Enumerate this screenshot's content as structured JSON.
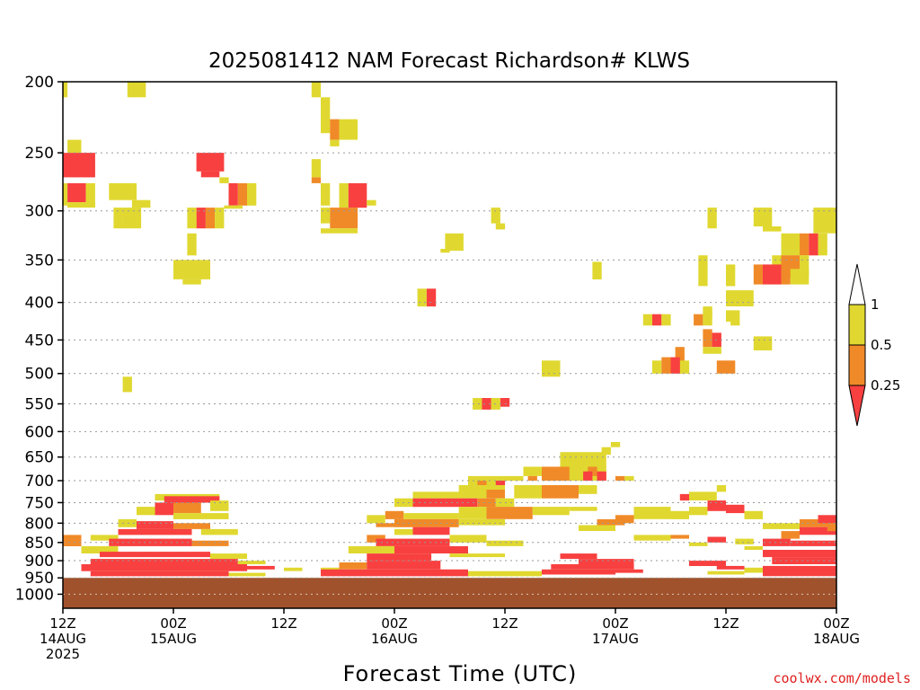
{
  "chart_data": {
    "type": "heatmap",
    "title": "2025081412 NAM Forecast Richardson# KLWS",
    "xlabel": "Forecast Time (UTC)",
    "credit": "coolwx.com/models",
    "y_ticks": [
      200,
      250,
      300,
      350,
      400,
      450,
      500,
      550,
      600,
      650,
      700,
      750,
      800,
      850,
      900,
      950,
      1000
    ],
    "y_range_hpa": [
      200,
      1000
    ],
    "x_range_hours": [
      0,
      84
    ],
    "x_ticks": [
      {
        "hour": 0,
        "line1": "12Z",
        "line2": "14AUG",
        "line3": "2025"
      },
      {
        "hour": 12,
        "line1": "00Z",
        "line2": "15AUG",
        "line3": ""
      },
      {
        "hour": 24,
        "line1": "12Z",
        "line2": "",
        "line3": ""
      },
      {
        "hour": 36,
        "line1": "00Z",
        "line2": "16AUG",
        "line3": ""
      },
      {
        "hour": 48,
        "line1": "12Z",
        "line2": "",
        "line3": ""
      },
      {
        "hour": 60,
        "line1": "00Z",
        "line2": "17AUG",
        "line3": ""
      },
      {
        "hour": 72,
        "line1": "12Z",
        "line2": "",
        "line3": ""
      },
      {
        "hour": 84,
        "line1": "00Z",
        "line2": "18AUG",
        "line3": ""
      }
    ],
    "grid": "dotted horizontal at pressure ticks",
    "legend": {
      "placement": "right",
      "labels": [
        "1",
        "0.5",
        "0.25"
      ],
      "bins": [
        {
          "range": ">1",
          "color": "#ffffff"
        },
        {
          "range": "0.5-1",
          "color": "#e0d830"
        },
        {
          "range": "0.25-0.5",
          "color": "#f08a28"
        },
        {
          "range": "<0.25",
          "color": "#f84040"
        }
      ]
    },
    "colors": {
      "low": "#f84040",
      "mid": "#f08a28",
      "high": "#e0d830",
      "ground": "#a0522d"
    },
    "ground_below_hpa": 950,
    "cells": [
      [
        0,
        0.5,
        200,
        210,
        "Y"
      ],
      [
        7,
        9,
        200,
        210,
        "Y"
      ],
      [
        27,
        28,
        200,
        210,
        "Y"
      ],
      [
        28,
        29,
        210,
        235,
        "Y"
      ],
      [
        29,
        30,
        225,
        240,
        "M"
      ],
      [
        30,
        32,
        225,
        240,
        "Y"
      ],
      [
        29,
        30,
        240,
        245,
        "Y"
      ],
      [
        0.5,
        2,
        240,
        250,
        "Y"
      ],
      [
        0,
        3.5,
        250,
        270,
        "L"
      ],
      [
        14.5,
        17.5,
        250,
        265,
        "L"
      ],
      [
        15,
        17,
        265,
        270,
        "L"
      ],
      [
        27,
        28,
        255,
        270,
        "Y"
      ],
      [
        27,
        28,
        270,
        275,
        "M"
      ],
      [
        17,
        18,
        270,
        275,
        "Y"
      ],
      [
        0,
        0.5,
        275,
        295,
        "Y"
      ],
      [
        0.5,
        2.5,
        275,
        292,
        "L"
      ],
      [
        2.5,
        3.5,
        275,
        295,
        "Y"
      ],
      [
        0.5,
        3.5,
        292,
        297,
        "Y"
      ],
      [
        5,
        8,
        275,
        290,
        "Y"
      ],
      [
        7.5,
        9.5,
        290,
        297,
        "Y"
      ],
      [
        18,
        19,
        275,
        295,
        "L"
      ],
      [
        19,
        20,
        275,
        295,
        "M"
      ],
      [
        17.5,
        19.5,
        295,
        298,
        "Y"
      ],
      [
        20,
        21,
        275,
        295,
        "Y"
      ],
      [
        28,
        29,
        275,
        295,
        "Y"
      ],
      [
        30,
        31,
        275,
        297,
        "Y"
      ],
      [
        31,
        33,
        275,
        297,
        "L"
      ],
      [
        33,
        34,
        290,
        295,
        "Y"
      ],
      [
        5.5,
        6.5,
        297,
        317,
        "Y"
      ],
      [
        6.5,
        8.5,
        297,
        317,
        "Y"
      ],
      [
        14.5,
        15.5,
        297,
        317,
        "L"
      ],
      [
        15.5,
        16.5,
        297,
        317,
        "M"
      ],
      [
        13.5,
        14.5,
        297,
        317,
        "Y"
      ],
      [
        16.5,
        17.5,
        297,
        317,
        "Y"
      ],
      [
        28,
        29,
        297,
        312,
        "Y"
      ],
      [
        29,
        32,
        297,
        317,
        "M"
      ],
      [
        28,
        32,
        317,
        322,
        "Y"
      ],
      [
        46.5,
        47.5,
        297,
        312,
        "Y"
      ],
      [
        47,
        48,
        312,
        318,
        "Y"
      ],
      [
        13.5,
        14.5,
        322,
        345,
        "Y"
      ],
      [
        41.5,
        43.5,
        322,
        340,
        "Y"
      ],
      [
        41,
        42,
        338,
        342,
        "Y"
      ],
      [
        70,
        71,
        297,
        317,
        "Y"
      ],
      [
        75,
        77,
        297,
        315,
        "Y"
      ],
      [
        76,
        78,
        315,
        320,
        "Y"
      ],
      [
        81.5,
        84,
        297,
        322,
        "Y"
      ],
      [
        12,
        16,
        350,
        372,
        "Y"
      ],
      [
        13,
        15,
        372,
        378,
        "Y"
      ],
      [
        57.5,
        58.5,
        352,
        372,
        "Y"
      ],
      [
        78,
        80,
        322,
        345,
        "Y"
      ],
      [
        80,
        81,
        322,
        345,
        "M"
      ],
      [
        81,
        82,
        322,
        345,
        "L"
      ],
      [
        82,
        83,
        322,
        345,
        "Y"
      ],
      [
        77,
        78,
        345,
        370,
        "Y"
      ],
      [
        78,
        80,
        345,
        370,
        "M"
      ],
      [
        80,
        81,
        345,
        370,
        "Y"
      ],
      [
        75,
        76,
        355,
        378,
        "M"
      ],
      [
        76,
        78,
        355,
        378,
        "L"
      ],
      [
        78,
        79,
        355,
        378,
        "M"
      ],
      [
        79,
        81,
        360,
        378,
        "Y"
      ],
      [
        69,
        70,
        345,
        380,
        "Y"
      ],
      [
        72,
        73,
        355,
        380,
        "Y"
      ],
      [
        38.5,
        39.5,
        383,
        405,
        "Y"
      ],
      [
        39.5,
        40.5,
        383,
        405,
        "L"
      ],
      [
        72,
        75,
        385,
        405,
        "Y"
      ],
      [
        69.5,
        70.5,
        405,
        420,
        "Y"
      ],
      [
        72,
        73,
        410,
        425,
        "Y"
      ],
      [
        63,
        64,
        415,
        430,
        "Y"
      ],
      [
        64,
        65,
        415,
        430,
        "L"
      ],
      [
        65,
        66,
        415,
        430,
        "Y"
      ],
      [
        68.5,
        69.5,
        415,
        430,
        "M"
      ],
      [
        69.5,
        70.5,
        410,
        430,
        "Y"
      ],
      [
        72.5,
        73.5,
        410,
        430,
        "Y"
      ],
      [
        69.5,
        70.5,
        435,
        460,
        "M"
      ],
      [
        70.5,
        71.5,
        440,
        460,
        "L"
      ],
      [
        75,
        77,
        445,
        465,
        "Y"
      ],
      [
        69.5,
        71.5,
        460,
        470,
        "Y"
      ],
      [
        66.5,
        67.5,
        460,
        500,
        "M"
      ],
      [
        64,
        65,
        480,
        500,
        "Y"
      ],
      [
        67,
        68,
        480,
        500,
        "Y"
      ],
      [
        65,
        66,
        475,
        500,
        "M"
      ],
      [
        66,
        67,
        475,
        500,
        "L"
      ],
      [
        71,
        73,
        480,
        500,
        "M"
      ],
      [
        6.5,
        7.5,
        505,
        530,
        "Y"
      ],
      [
        52,
        54,
        480,
        505,
        "Y"
      ],
      [
        44.5,
        45.5,
        540,
        560,
        "Y"
      ],
      [
        45.5,
        46.5,
        540,
        560,
        "L"
      ],
      [
        46.5,
        47.5,
        540,
        560,
        "Y"
      ],
      [
        47.5,
        48.5,
        540,
        555,
        "L"
      ],
      [
        59.5,
        60.5,
        620,
        630,
        "Y"
      ],
      [
        58.5,
        59.5,
        630,
        645,
        "Y"
      ],
      [
        54,
        59,
        640,
        700,
        "Y"
      ],
      [
        57,
        58,
        670,
        690,
        "M"
      ],
      [
        56.5,
        57.5,
        680,
        700,
        "L"
      ],
      [
        58,
        59,
        680,
        700,
        "L"
      ],
      [
        50,
        52,
        670,
        690,
        "Y"
      ],
      [
        52,
        55,
        670,
        700,
        "M"
      ],
      [
        48,
        50,
        690,
        700,
        "Y"
      ],
      [
        50.5,
        51.5,
        690,
        700,
        "M"
      ],
      [
        44,
        48,
        690,
        710,
        "Y"
      ],
      [
        45,
        46,
        700,
        720,
        "M"
      ],
      [
        47,
        48,
        700,
        710,
        "L"
      ],
      [
        60,
        61,
        690,
        700,
        "M"
      ],
      [
        61,
        62,
        690,
        700,
        "Y"
      ],
      [
        43,
        48,
        710,
        730,
        "Y"
      ],
      [
        46,
        48,
        720,
        740,
        "M"
      ],
      [
        49,
        52,
        710,
        740,
        "Y"
      ],
      [
        52,
        56,
        710,
        740,
        "M"
      ],
      [
        56,
        58,
        710,
        730,
        "Y"
      ],
      [
        38,
        46,
        725,
        740,
        "Y"
      ],
      [
        40,
        45,
        740,
        760,
        "L"
      ],
      [
        45,
        47,
        740,
        760,
        "M"
      ],
      [
        47,
        49,
        740,
        760,
        "Y"
      ],
      [
        36,
        38,
        740,
        760,
        "Y"
      ],
      [
        38,
        40,
        740,
        760,
        "L"
      ],
      [
        46,
        51,
        760,
        790,
        "M"
      ],
      [
        51,
        55,
        760,
        780,
        "Y"
      ],
      [
        55,
        58,
        760,
        770,
        "Y"
      ],
      [
        43,
        46,
        760,
        790,
        "Y"
      ],
      [
        35,
        37,
        770,
        790,
        "M"
      ],
      [
        33,
        35,
        780,
        800,
        "Y"
      ],
      [
        37,
        43,
        775,
        790,
        "Y"
      ],
      [
        34,
        36,
        800,
        810,
        "M"
      ],
      [
        36,
        43,
        790,
        810,
        "M"
      ],
      [
        43,
        48,
        790,
        805,
        "Y"
      ],
      [
        38,
        42,
        810,
        830,
        "L"
      ],
      [
        36,
        38,
        815,
        830,
        "Y"
      ],
      [
        33,
        35,
        830,
        850,
        "M"
      ],
      [
        34,
        42,
        840,
        860,
        "L"
      ],
      [
        42,
        46,
        830,
        850,
        "Y"
      ],
      [
        46,
        50,
        845,
        860,
        "Y"
      ],
      [
        31,
        36,
        860,
        880,
        "Y"
      ],
      [
        36,
        44,
        860,
        880,
        "L"
      ],
      [
        42,
        48,
        880,
        890,
        "Y"
      ],
      [
        33,
        40,
        880,
        900,
        "L"
      ],
      [
        30,
        33,
        905,
        925,
        "M"
      ],
      [
        33,
        41,
        900,
        925,
        "L"
      ],
      [
        28,
        30,
        920,
        935,
        "Y"
      ],
      [
        28,
        40,
        925,
        945,
        "L"
      ],
      [
        40,
        44,
        925,
        945,
        "L"
      ],
      [
        44,
        48,
        930,
        945,
        "Y"
      ],
      [
        48,
        52,
        930,
        945,
        "Y"
      ],
      [
        8,
        10,
        760,
        780,
        "Y"
      ],
      [
        10,
        12,
        750,
        780,
        "L"
      ],
      [
        12,
        15,
        740,
        775,
        "M"
      ],
      [
        10,
        17,
        730,
        745,
        "Y"
      ],
      [
        11,
        17,
        735,
        750,
        "L"
      ],
      [
        16,
        18,
        745,
        770,
        "Y"
      ],
      [
        12,
        18,
        775,
        790,
        "Y"
      ],
      [
        6,
        8,
        790,
        810,
        "Y"
      ],
      [
        8,
        12,
        795,
        815,
        "L"
      ],
      [
        12,
        16,
        800,
        815,
        "M"
      ],
      [
        6,
        14,
        815,
        830,
        "L"
      ],
      [
        15,
        19,
        815,
        830,
        "Y"
      ],
      [
        3,
        6,
        830,
        845,
        "Y"
      ],
      [
        5,
        14,
        840,
        860,
        "L"
      ],
      [
        14,
        18,
        845,
        860,
        "M"
      ],
      [
        0,
        2,
        830,
        860,
        "M"
      ],
      [
        2,
        6,
        860,
        880,
        "Y"
      ],
      [
        4,
        16,
        875,
        890,
        "L"
      ],
      [
        16,
        20,
        880,
        895,
        "Y"
      ],
      [
        3,
        19,
        895,
        910,
        "L"
      ],
      [
        19,
        22,
        900,
        910,
        "Y"
      ],
      [
        2,
        20,
        910,
        930,
        "L"
      ],
      [
        20,
        23,
        915,
        925,
        "L"
      ],
      [
        3,
        18,
        930,
        945,
        "L"
      ],
      [
        18,
        22,
        935,
        945,
        "Y"
      ],
      [
        24,
        26,
        920,
        930,
        "Y"
      ],
      [
        62,
        66,
        760,
        790,
        "Y"
      ],
      [
        60,
        62,
        780,
        800,
        "M"
      ],
      [
        66,
        68,
        770,
        790,
        "Y"
      ],
      [
        68,
        70,
        760,
        780,
        "Y"
      ],
      [
        72,
        74,
        755,
        775,
        "L"
      ],
      [
        74,
        76,
        770,
        790,
        "Y"
      ],
      [
        70,
        72,
        745,
        770,
        "L"
      ],
      [
        67,
        68,
        730,
        745,
        "L"
      ],
      [
        68,
        71,
        725,
        745,
        "Y"
      ],
      [
        71,
        72,
        710,
        725,
        "Y"
      ],
      [
        58,
        61,
        790,
        805,
        "M"
      ],
      [
        56,
        60,
        805,
        820,
        "Y"
      ],
      [
        62,
        66,
        830,
        845,
        "Y"
      ],
      [
        66,
        68,
        830,
        840,
        "M"
      ],
      [
        70,
        72,
        835,
        850,
        "L"
      ],
      [
        68,
        70,
        850,
        860,
        "Y"
      ],
      [
        73,
        75,
        840,
        855,
        "Y"
      ],
      [
        54,
        58,
        880,
        895,
        "L"
      ],
      [
        56,
        62,
        895,
        910,
        "L"
      ],
      [
        53,
        62,
        910,
        925,
        "L"
      ],
      [
        52,
        60,
        925,
        940,
        "L"
      ],
      [
        60,
        63,
        925,
        935,
        "L"
      ],
      [
        68,
        72,
        900,
        915,
        "L"
      ],
      [
        71,
        74,
        915,
        925,
        "L"
      ],
      [
        70,
        74,
        930,
        940,
        "Y"
      ],
      [
        76,
        80,
        800,
        815,
        "Y"
      ],
      [
        80,
        84,
        790,
        810,
        "M"
      ],
      [
        80,
        84,
        810,
        830,
        "L"
      ],
      [
        78,
        80,
        820,
        840,
        "M"
      ],
      [
        76,
        79,
        840,
        860,
        "L"
      ],
      [
        79,
        84,
        845,
        860,
        "L"
      ],
      [
        74,
        76,
        860,
        870,
        "Y"
      ],
      [
        76,
        84,
        870,
        890,
        "L"
      ],
      [
        77,
        84,
        890,
        910,
        "L"
      ],
      [
        76,
        84,
        915,
        945,
        "L"
      ],
      [
        74,
        76,
        920,
        935,
        "Y"
      ],
      [
        82,
        84,
        780,
        800,
        "L"
      ],
      [
        83,
        84,
        800,
        820,
        "M"
      ]
    ]
  }
}
